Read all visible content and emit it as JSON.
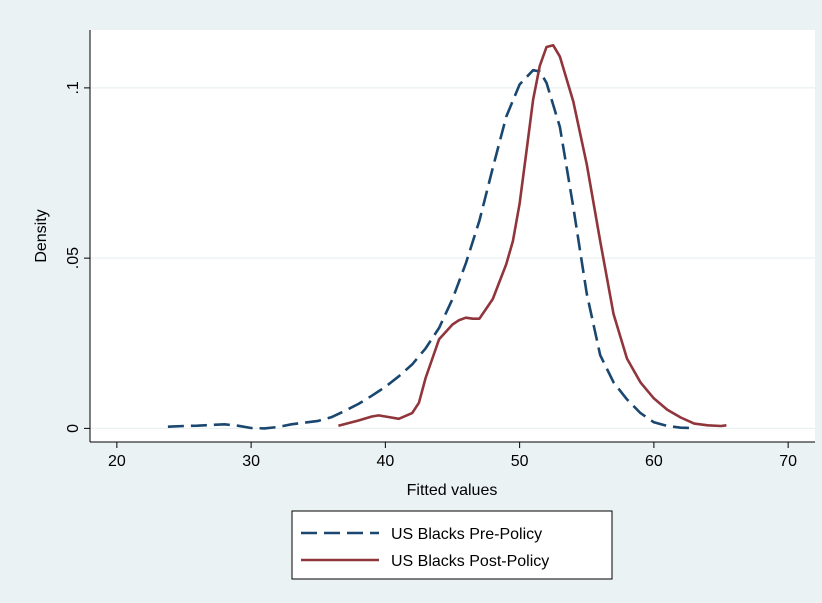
{
  "chart_data": {
    "type": "line",
    "title": "",
    "xlabel": "Fitted values",
    "ylabel": "Density",
    "xlim": [
      18,
      72
    ],
    "ylim": [
      -0.004,
      0.117
    ],
    "x_ticks": [
      20,
      30,
      40,
      50,
      60,
      70
    ],
    "x_tick_labels": [
      "20",
      "30",
      "40",
      "50",
      "60",
      "70"
    ],
    "y_ticks": [
      0,
      0.05,
      0.1
    ],
    "y_tick_labels": [
      "0",
      ".05",
      ".1"
    ],
    "grid": "horizontal",
    "legend_position": "bottom",
    "series": [
      {
        "name": "US Blacks Pre-Policy",
        "color": "#1a476f",
        "style": "dashed",
        "x": [
          23.8,
          25,
          26,
          27,
          28,
          29,
          30,
          31,
          32,
          33,
          34,
          35,
          36,
          37,
          38,
          39,
          40,
          41,
          42,
          43,
          44,
          45,
          46,
          47,
          48,
          49,
          50,
          51,
          51.5,
          52,
          53,
          54,
          55,
          56,
          57,
          58,
          59,
          60,
          61,
          62,
          62.8
        ],
        "y": [
          0.0005,
          0.0007,
          0.0008,
          0.001,
          0.0012,
          0.0008,
          0.0001,
          0.0,
          0.0004,
          0.0012,
          0.0017,
          0.0022,
          0.0033,
          0.0052,
          0.0072,
          0.0096,
          0.0122,
          0.0153,
          0.0188,
          0.0235,
          0.0295,
          0.038,
          0.0485,
          0.061,
          0.0765,
          0.0915,
          0.101,
          0.1052,
          0.1048,
          0.1015,
          0.0885,
          0.065,
          0.0395,
          0.0215,
          0.0135,
          0.0085,
          0.0045,
          0.0018,
          0.0007,
          0.0002,
          0.0001
        ]
      },
      {
        "name": "US Blacks Post-Policy",
        "color": "#90353b",
        "style": "solid",
        "x": [
          36.5,
          37,
          38,
          39,
          39.5,
          40,
          41,
          42,
          42.5,
          43,
          44,
          45,
          45.5,
          46,
          46.5,
          47,
          48,
          49,
          49.5,
          50,
          50.5,
          51,
          51.5,
          52,
          52.5,
          53,
          54,
          55,
          56,
          57,
          58,
          59,
          60,
          61,
          62,
          63,
          64,
          65,
          65.4
        ],
        "y": [
          0.0008,
          0.0013,
          0.0023,
          0.0035,
          0.0038,
          0.0035,
          0.0028,
          0.0045,
          0.0075,
          0.0148,
          0.0262,
          0.0305,
          0.0318,
          0.0325,
          0.0322,
          0.0322,
          0.038,
          0.0482,
          0.055,
          0.066,
          0.081,
          0.0965,
          0.1065,
          0.112,
          0.1125,
          0.1092,
          0.096,
          0.0775,
          0.055,
          0.0335,
          0.0205,
          0.0135,
          0.0088,
          0.0055,
          0.0032,
          0.0014,
          0.0009,
          0.0007,
          0.0009
        ]
      }
    ]
  }
}
